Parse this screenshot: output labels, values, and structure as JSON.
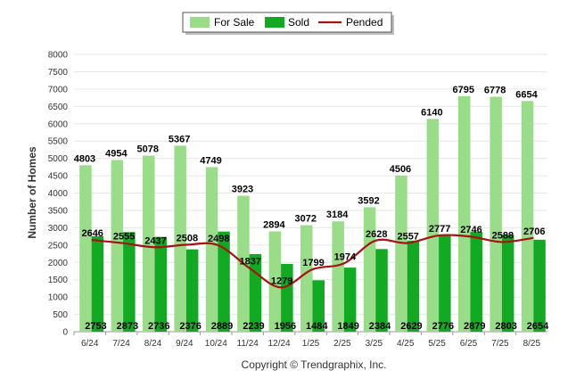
{
  "chart_data": {
    "type": "bar",
    "title": "",
    "xlabel": "",
    "ylabel": "Number of Homes",
    "ylim": [
      0,
      8000
    ],
    "yticks": [
      0,
      500,
      1000,
      1500,
      2000,
      2500,
      3000,
      3500,
      4000,
      4500,
      5000,
      5500,
      6000,
      6500,
      7000,
      7500,
      8000
    ],
    "categories": [
      "6/24",
      "7/24",
      "8/24",
      "9/24",
      "10/24",
      "11/24",
      "12/24",
      "1/25",
      "2/25",
      "3/25",
      "4/25",
      "5/25",
      "6/25",
      "7/25",
      "8/25"
    ],
    "series": [
      {
        "name": "For Sale",
        "type": "bar",
        "color": "#99dd88",
        "values": [
          4803,
          4954,
          5078,
          5367,
          4749,
          3923,
          2894,
          3072,
          3184,
          3592,
          4506,
          6140,
          6795,
          6778,
          6654
        ]
      },
      {
        "name": "Sold",
        "type": "bar",
        "color": "#11aa22",
        "values": [
          2753,
          2873,
          2736,
          2376,
          2889,
          2239,
          1956,
          1484,
          1849,
          2384,
          2629,
          2776,
          2879,
          2803,
          2654
        ]
      },
      {
        "name": "Pended",
        "type": "line",
        "color": "#aa1111",
        "values": [
          2646,
          2555,
          2437,
          2508,
          2498,
          1837,
          1279,
          1799,
          1974,
          2628,
          2557,
          2777,
          2746,
          2588,
          2706
        ]
      }
    ],
    "grid": true,
    "legend_position": "top-center"
  },
  "credit": "Copyright © Trendgraphix, Inc."
}
